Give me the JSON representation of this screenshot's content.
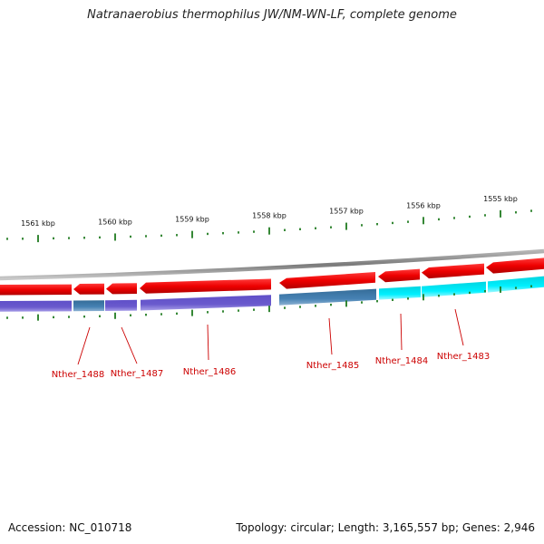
{
  "title": "Natranaerobius thermophilus JW/NM-WN-LF, complete genome",
  "accession": "Accession: NC_010718",
  "summary": "Topology: circular; Length: 3,165,557 bp; Genes: 2,946",
  "colors": {
    "backbone": "#8a8a8a",
    "forward_cds": "#ee0000",
    "tick": "#1f7a1f",
    "label": "#cc0000",
    "track_purple": "#6a5acd",
    "track_steel": "#3f7fb0",
    "track_cyan": "#00e5ee"
  },
  "ruler": {
    "labels": [
      {
        "text": "1561 kbp",
        "kbp": 1561
      },
      {
        "text": "1560 kbp",
        "kbp": 1560
      },
      {
        "text": "1559 kbp",
        "kbp": 1559
      },
      {
        "text": "1558 kbp",
        "kbp": 1558
      },
      {
        "text": "1557 kbp",
        "kbp": 1557
      },
      {
        "text": "1556 kbp",
        "kbp": 1556
      },
      {
        "text": "1555 kbp",
        "kbp": 1555
      }
    ]
  },
  "genes": [
    {
      "label": "Nther_1488"
    },
    {
      "label": "Nther_1487"
    },
    {
      "label": "Nther_1486"
    },
    {
      "label": "Nther_1485"
    },
    {
      "label": "Nther_1484"
    },
    {
      "label": "Nther_1483"
    }
  ]
}
